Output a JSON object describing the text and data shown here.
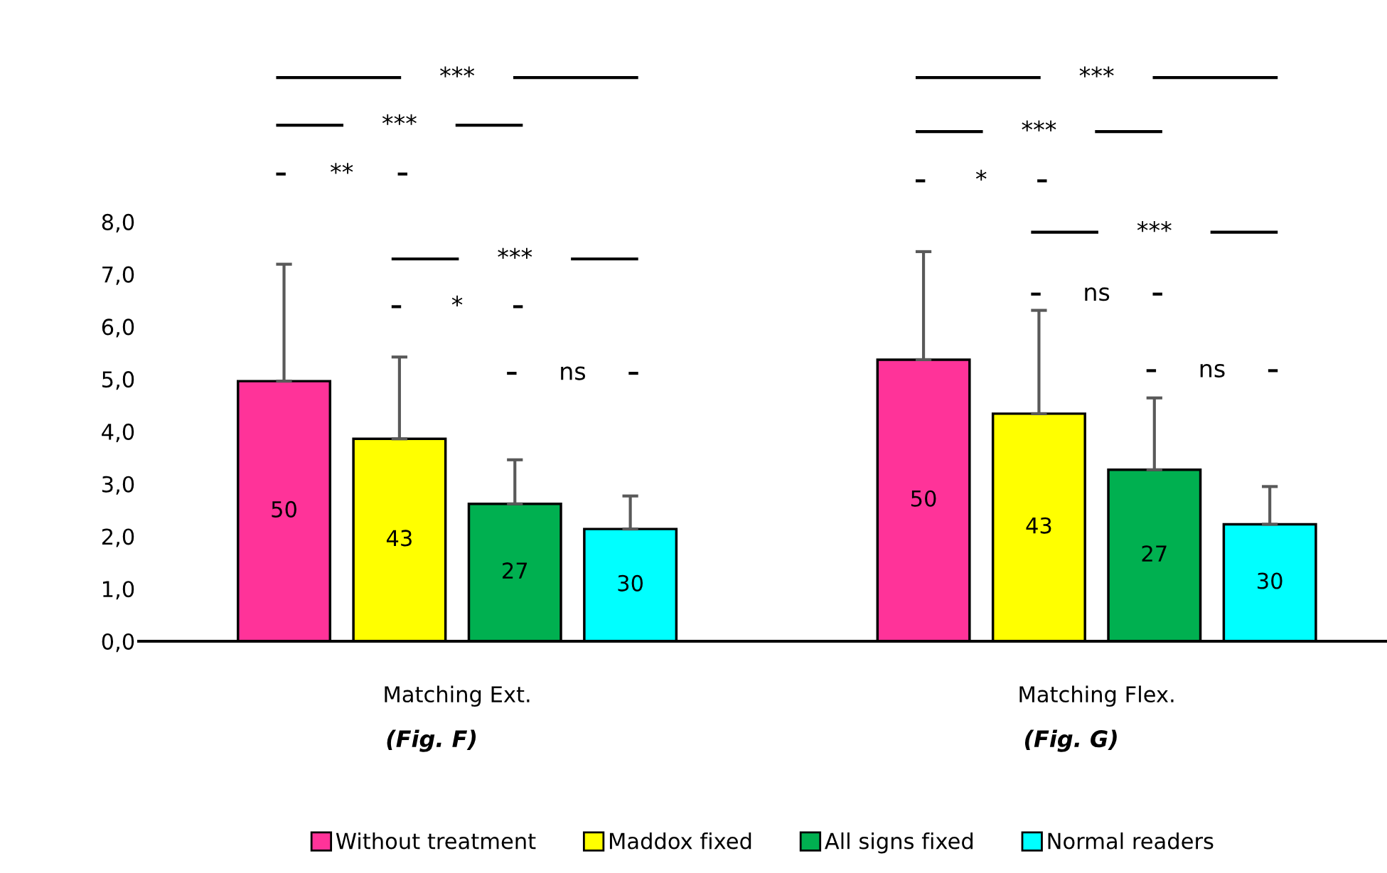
{
  "chart_data": {
    "type": "bar",
    "categories": [
      "Matching Ext.",
      "Matching Flex."
    ],
    "series": [
      {
        "name": "Without treatment",
        "color": "#ff3399",
        "values": [
          4.96,
          5.37
        ],
        "errors": [
          [
            4.96,
            7.19
          ],
          [
            5.37,
            7.43
          ]
        ]
      },
      {
        "name": "Maddox fixed",
        "color": "#ffff00",
        "values": [
          3.86,
          4.34
        ],
        "errors": [
          [
            3.86,
            5.42
          ],
          [
            4.34,
            6.31
          ]
        ]
      },
      {
        "name": "All signs fixed",
        "color": "#00b050",
        "values": [
          2.62,
          3.27
        ],
        "errors": [
          [
            2.62,
            3.46
          ],
          [
            3.27,
            4.64
          ]
        ]
      },
      {
        "name": "Normal readers",
        "color": "#00ffff",
        "values": [
          2.14,
          2.23
        ],
        "errors": [
          [
            2.14,
            2.77
          ],
          [
            2.23,
            2.95
          ]
        ]
      }
    ],
    "ylim": [
      0,
      8
    ],
    "yticks": [
      {
        "value": 0,
        "label": "0,0"
      },
      {
        "value": 1,
        "label": "1,0"
      },
      {
        "value": 2,
        "label": "2,0"
      },
      {
        "value": 3,
        "label": "3,0"
      },
      {
        "value": 4,
        "label": "4,0"
      },
      {
        "value": 5,
        "label": "5,0"
      },
      {
        "value": 6,
        "label": "6,0"
      },
      {
        "value": 7,
        "label": "7,0"
      },
      {
        "value": 8,
        "label": "8,0"
      }
    ],
    "grid": false,
    "legend": "bottom",
    "annotations": [
      "***",
      "***",
      "**",
      "***",
      "*",
      "ns",
      "***",
      "***",
      "*",
      "***",
      "ns",
      "ns",
      "(Fig. F)",
      "(Fig. G)",
      "50",
      "50",
      "43",
      "43",
      "27",
      "27",
      "30",
      "30"
    ]
  }
}
